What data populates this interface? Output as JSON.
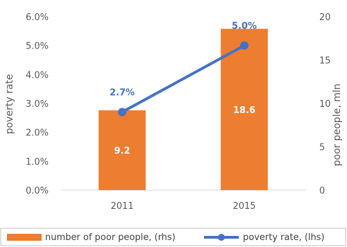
{
  "chart_data": {
    "type": "bar",
    "categories": [
      "2011",
      "2015"
    ],
    "series": [
      {
        "name": "number of poor people, (rhs)",
        "type": "bar",
        "axis": "right",
        "values": [
          9.2,
          18.6
        ],
        "labels": [
          "9.2",
          "18.6"
        ],
        "color": "#ED7D31"
      },
      {
        "name": "poverty rate, (lhs)",
        "type": "line",
        "axis": "left",
        "values": [
          2.7,
          5.0
        ],
        "labels": [
          "2.7%",
          "5.0%"
        ],
        "color": "#4472C4"
      }
    ],
    "ylabel": "poverty rate",
    "y2label": "poor people, mln",
    "xlabel": "",
    "ylim": [
      0,
      6
    ],
    "y2lim": [
      0,
      20
    ],
    "yticks": [
      "0.0%",
      "1.0%",
      "2.0%",
      "3.0%",
      "4.0%",
      "5.0%",
      "6.0%"
    ],
    "y2ticks": [
      "0",
      "5",
      "10",
      "15",
      "20"
    ],
    "grid": false,
    "legend": "bottom"
  }
}
